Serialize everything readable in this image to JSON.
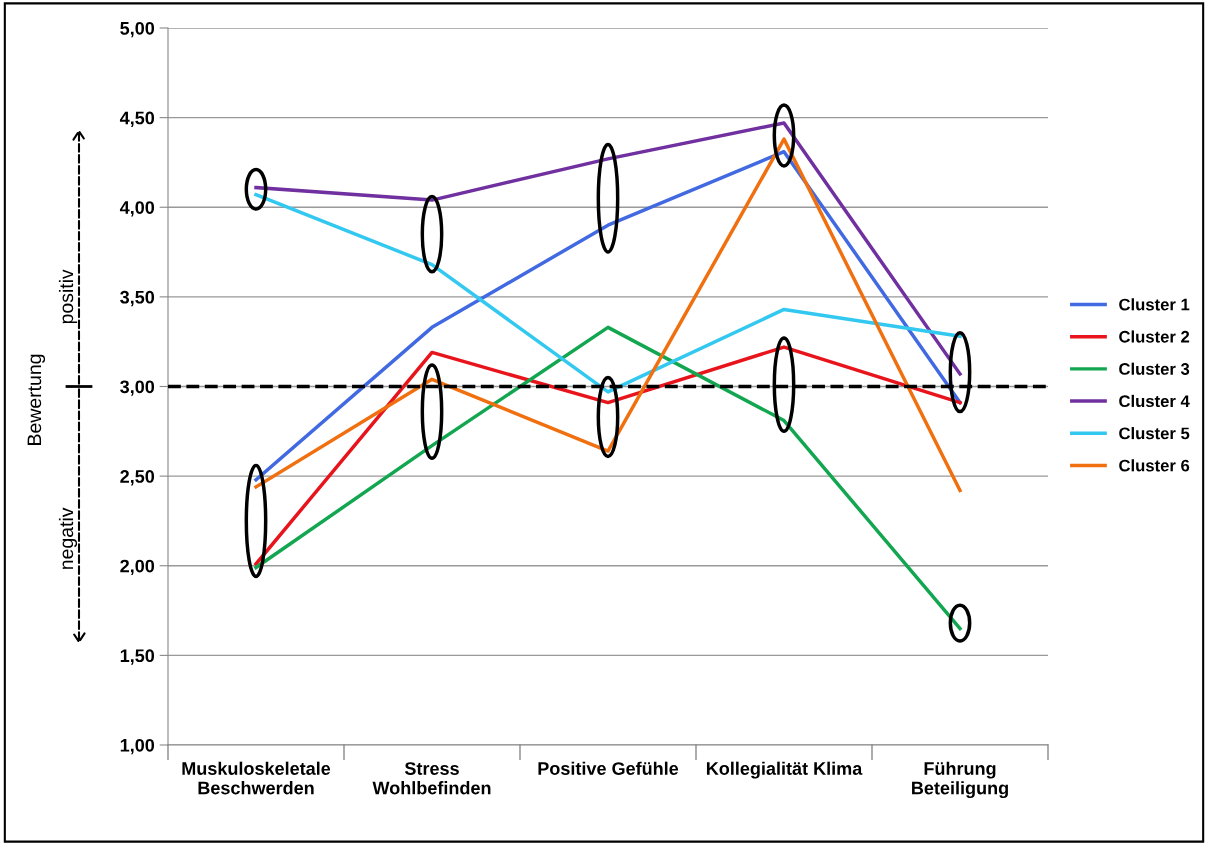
{
  "chart_data": {
    "type": "line",
    "ylabel": "Bewertung",
    "categories": [
      "Muskuloskeletale\nBeschwerden",
      "Stress\nWohlbefinden",
      "Positive Gefühle",
      "Kollegialität Klima",
      "Führung\nBeteiligung"
    ],
    "series": [
      {
        "name": "Cluster 1",
        "color": "#4169e1",
        "values": [
          2.48,
          3.33,
          3.9,
          4.31,
          2.91
        ]
      },
      {
        "name": "Cluster 2",
        "color": "#e8141c",
        "values": [
          2.01,
          3.19,
          2.91,
          3.22,
          2.91
        ]
      },
      {
        "name": "Cluster 3",
        "color": "#12a650",
        "values": [
          1.99,
          2.67,
          3.33,
          2.81,
          1.65
        ]
      },
      {
        "name": "Cluster 4",
        "color": "#7030a0",
        "values": [
          4.11,
          4.04,
          4.27,
          4.47,
          3.07
        ]
      },
      {
        "name": "Cluster 5",
        "color": "#33c8f0",
        "values": [
          4.07,
          3.68,
          2.97,
          3.43,
          3.28
        ]
      },
      {
        "name": "Cluster 6",
        "color": "#f07010",
        "values": [
          2.44,
          3.04,
          2.64,
          4.38,
          2.42
        ]
      }
    ],
    "ylim": [
      1,
      5
    ],
    "yticks": [
      {
        "value": 1,
        "label": "1,00"
      },
      {
        "value": 1.5,
        "label": "1,50"
      },
      {
        "value": 2,
        "label": "2,00"
      },
      {
        "value": 2.5,
        "label": "2,50"
      },
      {
        "value": 3,
        "label": "3,00"
      },
      {
        "value": 3.5,
        "label": "3,50"
      },
      {
        "value": 4,
        "label": "4,00"
      },
      {
        "value": 4.5,
        "label": "4,50"
      },
      {
        "value": 5,
        "label": "5,00"
      }
    ],
    "ref_lines": [
      {
        "axis": "y",
        "value": 3,
        "color": "#000000",
        "line_style": "dashed"
      }
    ],
    "annotations": [
      "positiv",
      "negativ"
    ],
    "grid": "y",
    "legend": "right",
    "marker": "none",
    "line_style": "solid"
  }
}
